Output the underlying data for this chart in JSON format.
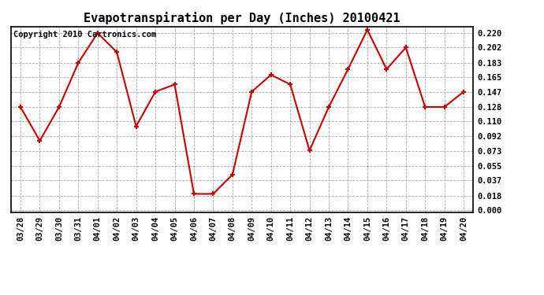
{
  "title": "Evapotranspiration per Day (Inches) 20100421",
  "copyright": "Copyright 2010 Cartronics.com",
  "x_labels": [
    "03/28",
    "03/29",
    "03/30",
    "03/31",
    "04/01",
    "04/02",
    "04/03",
    "04/04",
    "04/05",
    "04/06",
    "04/07",
    "04/08",
    "04/09",
    "04/10",
    "04/11",
    "04/12",
    "04/13",
    "04/14",
    "04/15",
    "04/16",
    "04/17",
    "04/18",
    "04/19",
    "04/20"
  ],
  "y_values": [
    0.128,
    0.086,
    0.128,
    0.183,
    0.22,
    0.196,
    0.104,
    0.147,
    0.156,
    0.02,
    0.02,
    0.044,
    0.147,
    0.168,
    0.156,
    0.074,
    0.128,
    0.175,
    0.224,
    0.175,
    0.202,
    0.128,
    0.128,
    0.147
  ],
  "y_ticks": [
    0.0,
    0.018,
    0.037,
    0.055,
    0.073,
    0.092,
    0.11,
    0.128,
    0.147,
    0.165,
    0.183,
    0.202,
    0.22
  ],
  "y_min": -0.003,
  "y_max": 0.228,
  "line_color": "#cc0000",
  "marker_color": "#cc0000",
  "bg_color": "#ffffff",
  "plot_bg_color": "#ffffff",
  "grid_color": "#aaaaaa",
  "title_fontsize": 11,
  "copyright_fontsize": 7.5,
  "tick_fontsize": 7.5
}
